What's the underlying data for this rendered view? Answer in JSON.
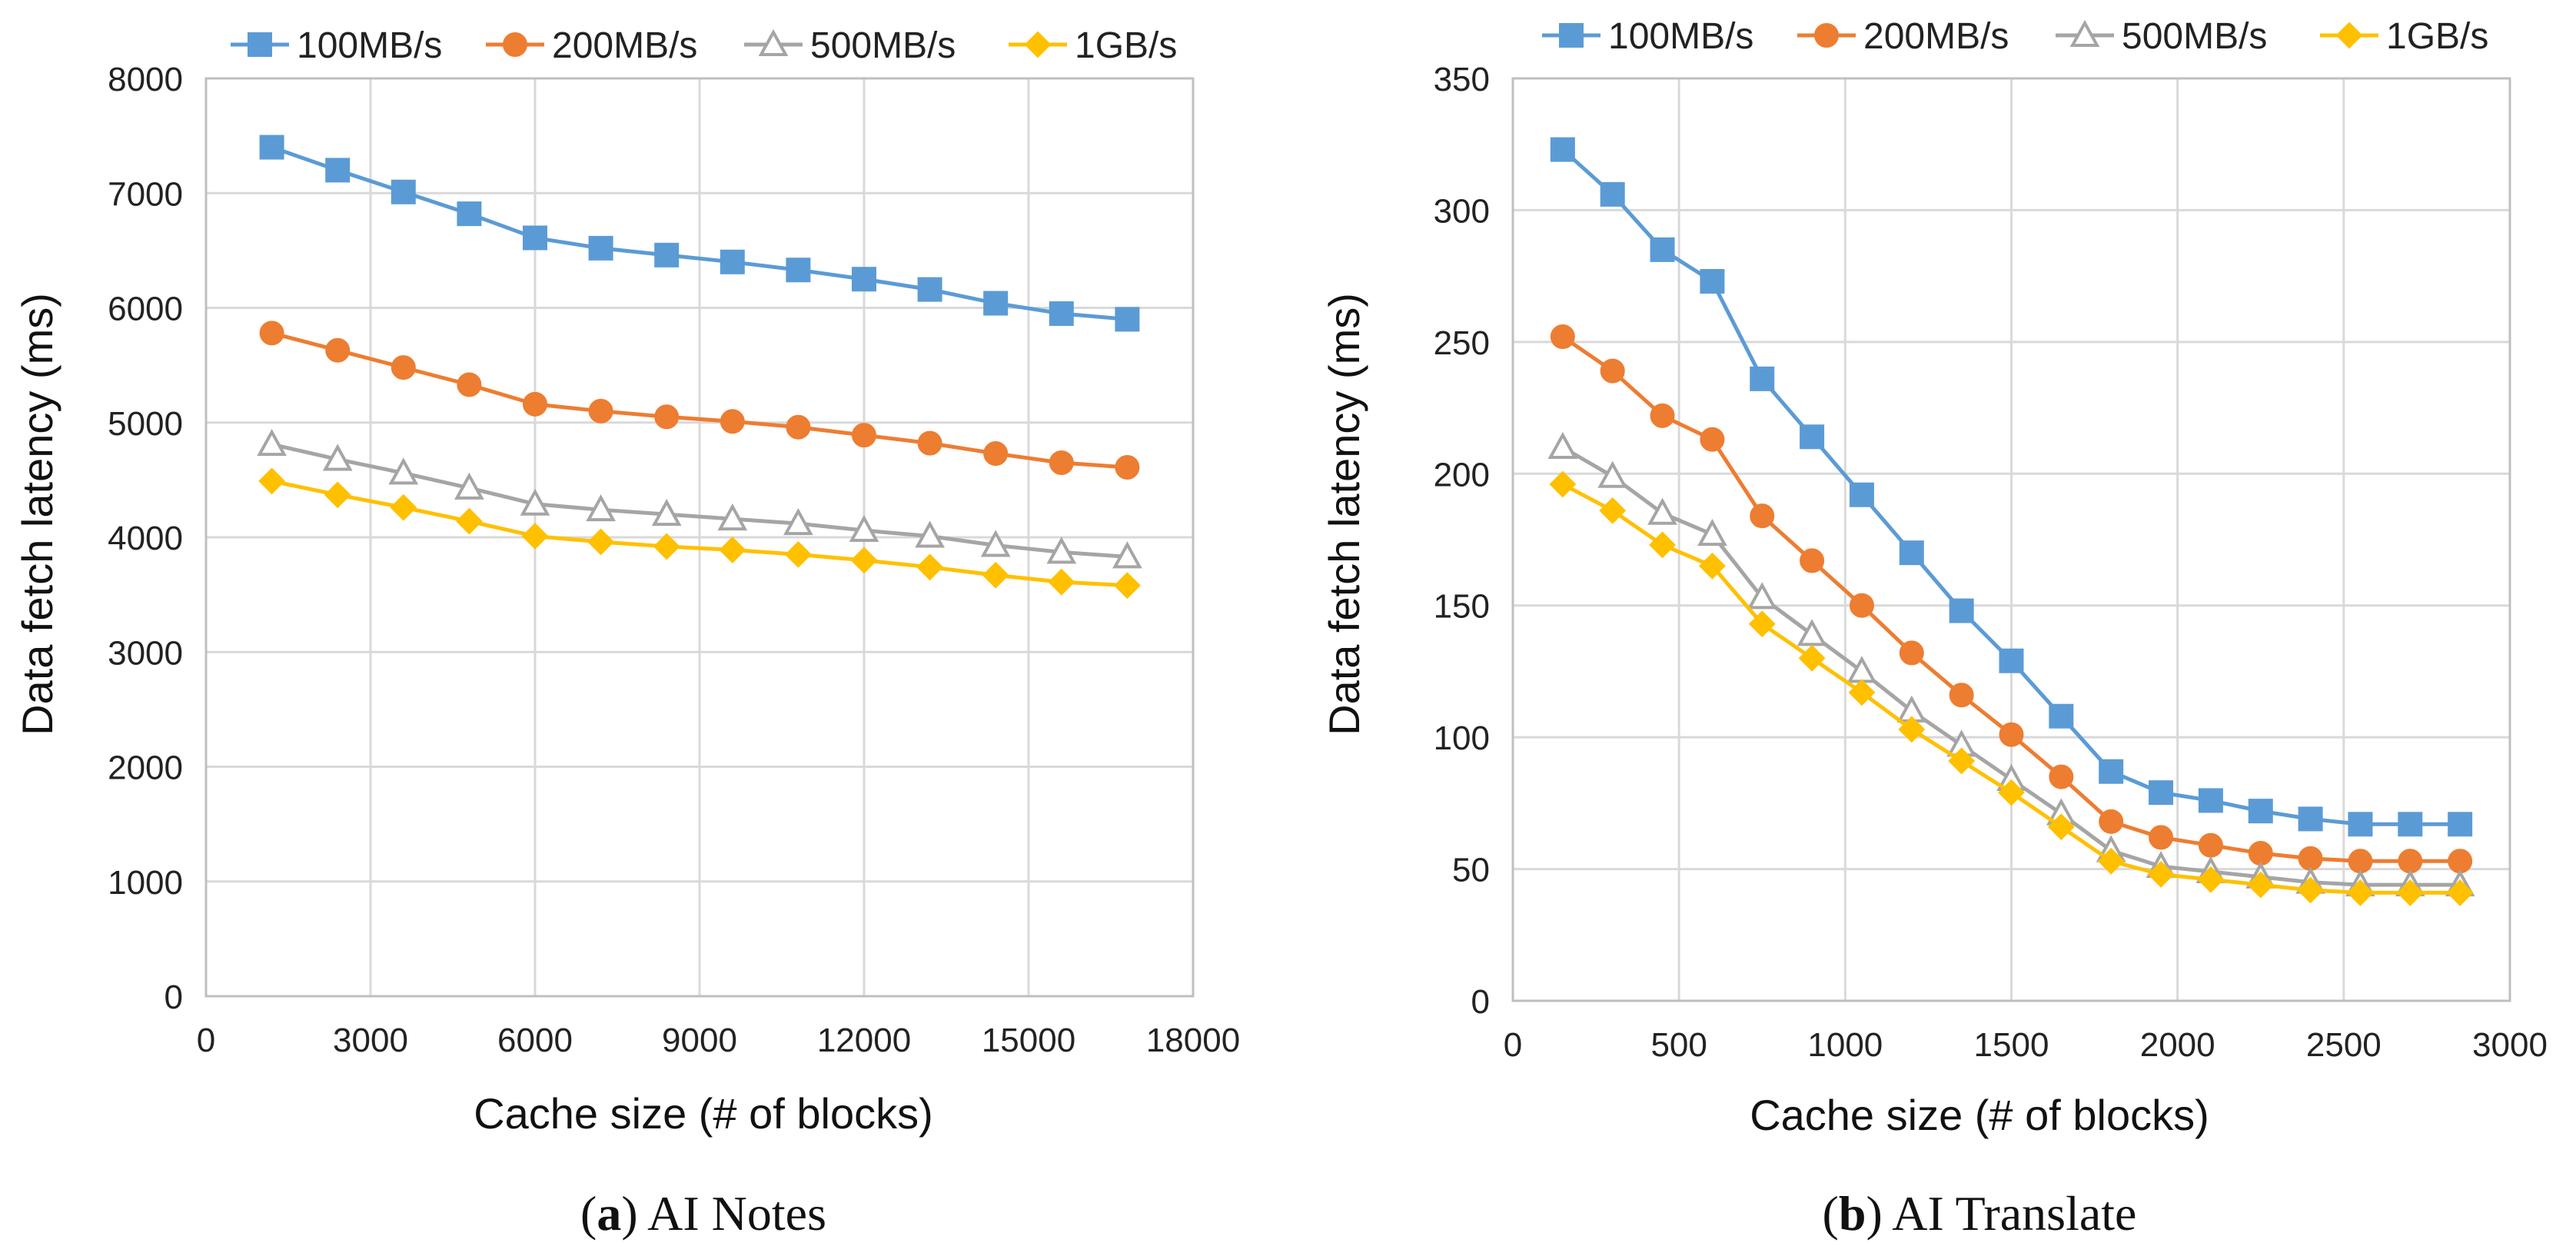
{
  "colors": {
    "s100": "#5b9bd5",
    "s200": "#ed7d31",
    "s500": "#a5a5a5",
    "s1g": "#ffc000",
    "grid": "#d9d9d9"
  },
  "chart_data": [
    {
      "type": "line",
      "caption_label": "a",
      "caption_text": "AI Notes",
      "xlabel": "Cache size (# of blocks)",
      "ylabel": "Data fetch latency (ms)",
      "xlim": [
        0,
        18000
      ],
      "ylim": [
        0,
        8000
      ],
      "xticks": [
        0,
        3000,
        6000,
        9000,
        12000,
        15000,
        18000
      ],
      "yticks": [
        0,
        1000,
        2000,
        3000,
        4000,
        5000,
        6000,
        7000,
        8000
      ],
      "x": [
        1200,
        2400,
        3600,
        4800,
        6000,
        7200,
        8400,
        9600,
        10800,
        12000,
        13200,
        14400,
        15600,
        16800
      ],
      "legend_position": "top",
      "grid": true,
      "series": [
        {
          "name": "100MB/s",
          "marker": "square",
          "values": [
            7400,
            7200,
            7010,
            6820,
            6610,
            6520,
            6460,
            6400,
            6330,
            6250,
            6160,
            6040,
            5950,
            5900
          ]
        },
        {
          "name": "200MB/s",
          "marker": "circle",
          "values": [
            5780,
            5630,
            5480,
            5330,
            5160,
            5100,
            5050,
            5010,
            4960,
            4890,
            4820,
            4730,
            4650,
            4610
          ]
        },
        {
          "name": "500MB/s",
          "marker": "triangle",
          "values": [
            4810,
            4680,
            4560,
            4430,
            4290,
            4240,
            4200,
            4160,
            4120,
            4060,
            4010,
            3930,
            3870,
            3830
          ]
        },
        {
          "name": "1GB/s",
          "marker": "diamond",
          "values": [
            4490,
            4370,
            4260,
            4140,
            4010,
            3960,
            3920,
            3890,
            3850,
            3800,
            3740,
            3670,
            3610,
            3580
          ]
        }
      ]
    },
    {
      "type": "line",
      "caption_label": "b",
      "caption_text": "AI Translate",
      "xlabel": "Cache size (# of blocks)",
      "ylabel": "Data fetch latency (ms)",
      "xlim": [
        0,
        3000
      ],
      "ylim": [
        0,
        350
      ],
      "xticks": [
        0,
        500,
        1000,
        1500,
        2000,
        2500,
        3000
      ],
      "yticks": [
        0,
        50,
        100,
        150,
        200,
        250,
        300,
        350
      ],
      "x": [
        150,
        300,
        450,
        600,
        750,
        900,
        1050,
        1200,
        1350,
        1500,
        1650,
        1800,
        1950,
        2100,
        2250,
        2400,
        2550,
        2700,
        2850
      ],
      "legend_position": "top",
      "grid": true,
      "series": [
        {
          "name": "100MB/s",
          "marker": "square",
          "values": [
            323,
            306,
            285,
            273,
            236,
            214,
            192,
            170,
            148,
            129,
            108,
            87,
            79,
            76,
            72,
            69,
            67,
            67,
            67
          ]
        },
        {
          "name": "200MB/s",
          "marker": "circle",
          "values": [
            252,
            239,
            222,
            213,
            184,
            167,
            150,
            132,
            116,
            101,
            85,
            68,
            62,
            59,
            56,
            54,
            53,
            53,
            53
          ]
        },
        {
          "name": "500MB/s",
          "marker": "triangle",
          "values": [
            210,
            199,
            185,
            177,
            153,
            139,
            125,
            110,
            97,
            84,
            71,
            57,
            51,
            49,
            47,
            45,
            44,
            44,
            44
          ]
        },
        {
          "name": "1GB/s",
          "marker": "diamond",
          "values": [
            196,
            186,
            173,
            165,
            143,
            130,
            117,
            103,
            91,
            79,
            66,
            53,
            48,
            46,
            44,
            42,
            41,
            41,
            41
          ]
        }
      ]
    }
  ]
}
